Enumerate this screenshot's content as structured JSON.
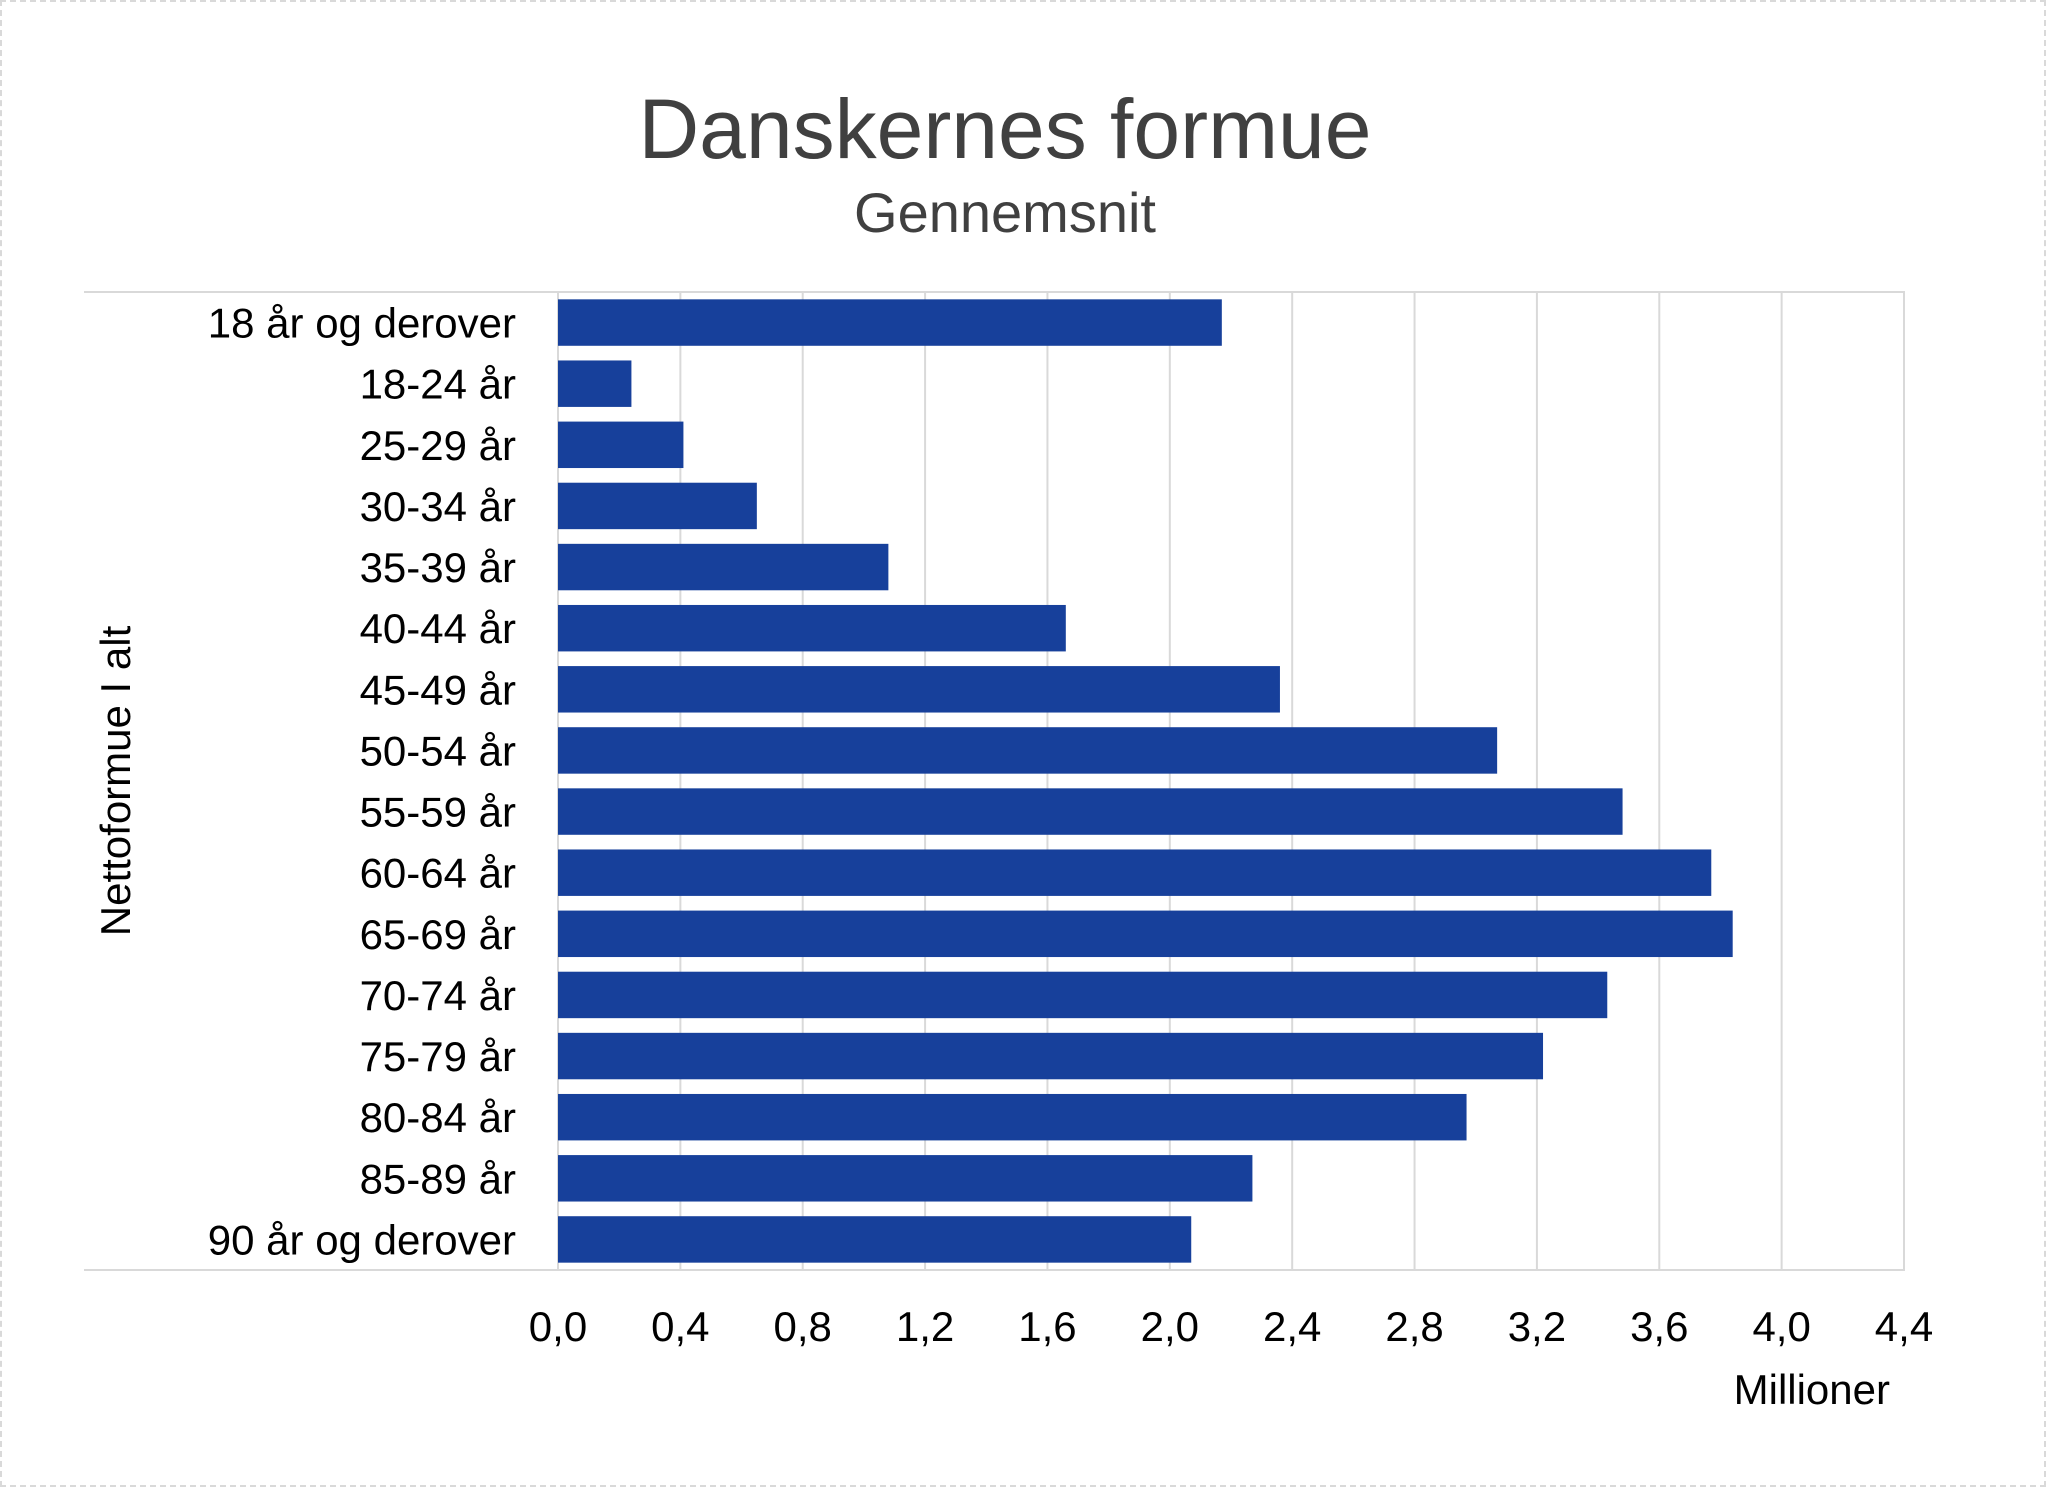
{
  "chart_data": {
    "type": "bar",
    "orientation": "horizontal",
    "title": "Danskernes formue",
    "subtitle": "Gennemsnit",
    "xlabel": "Millioner",
    "ylabel": "Nettoformue I alt",
    "xlim": [
      0,
      4.4
    ],
    "xticks": [
      "0,0",
      "0,4",
      "0,8",
      "1,2",
      "1,6",
      "2,0",
      "2,4",
      "2,8",
      "3,2",
      "3,6",
      "4,0",
      "4,4"
    ],
    "grid": true,
    "legend": "none",
    "bar_color": "#17409B",
    "categories": [
      "18 år og derover",
      "18-24 år",
      "25-29 år",
      "30-34 år",
      "35-39 år",
      "40-44 år",
      "45-49 år",
      "50-54 år",
      "55-59 år",
      "60-64 år",
      "65-69 år",
      "70-74 år",
      "75-79 år",
      "80-84 år",
      "85-89 år",
      "90 år og derover"
    ],
    "values": [
      2.17,
      0.24,
      0.41,
      0.65,
      1.08,
      1.66,
      2.36,
      3.07,
      3.48,
      3.77,
      3.84,
      3.43,
      3.22,
      2.97,
      2.27,
      2.07
    ]
  }
}
